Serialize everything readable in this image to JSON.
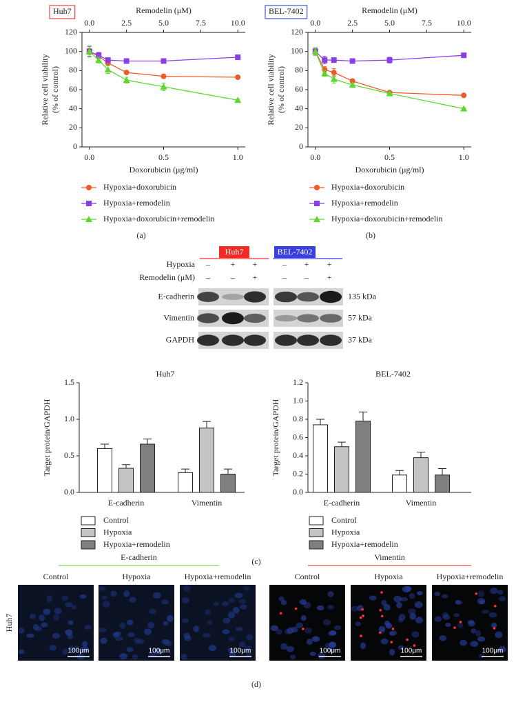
{
  "chart_data": [
    {
      "type": "line",
      "badge": "Huh7",
      "badge_color": "#e8453c",
      "panel_label": "(a)",
      "x2_label": "Remodelin (μM)",
      "xlabel": "Doxorubicin (μg/ml)",
      "ylabel": [
        "Relative cell viability",
        "(% of control)"
      ],
      "x": [
        0,
        0.0625,
        0.125,
        0.25,
        0.5,
        1.0
      ],
      "xlim": [
        -0.05,
        1.05
      ],
      "xticks": [
        {
          "value": 0,
          "label": "0.0"
        },
        0.5,
        {
          "value": 1,
          "label": "1.0"
        }
      ],
      "x2lim": [
        -0.5,
        10.5
      ],
      "x2ticks": [
        {
          "value": 0,
          "label": "0.0"
        },
        2.5,
        {
          "value": 5,
          "label": "5.0"
        },
        7.5,
        {
          "value": 10,
          "label": "10.0"
        }
      ],
      "ylim": [
        0,
        120
      ],
      "yticks": [
        0,
        20,
        40,
        60,
        80,
        100,
        120
      ],
      "series": [
        {
          "name": "Hypoxia+doxorubicin",
          "color": "#f05a28",
          "marker": "circle",
          "values": [
            100,
            95,
            88,
            78,
            74,
            73
          ],
          "errors": [
            3,
            2,
            2,
            1,
            2,
            1
          ]
        },
        {
          "name": "Hypoxia+remodelin",
          "color": "#8a3ee8",
          "marker": "square",
          "values": [
            100,
            96,
            91,
            90,
            90,
            94
          ],
          "errors": [
            5,
            3,
            1,
            1,
            2,
            1
          ]
        },
        {
          "name": "Hypoxia+doxorubicin+remodelin",
          "color": "#5fd62f",
          "marker": "triangle",
          "values": [
            100,
            91,
            81,
            70,
            63,
            49
          ],
          "errors": [
            6,
            3,
            4,
            3,
            4,
            1
          ]
        }
      ]
    },
    {
      "type": "line",
      "badge": "BEL-7402",
      "badge_color": "#3f4fd6",
      "panel_label": "(b)",
      "x2_label": "Remodelin (μM)",
      "xlabel": "Doxorubicin (μg/ml)",
      "ylabel": [
        "Relative cell viability",
        "(% of control)"
      ],
      "x": [
        0,
        0.0625,
        0.125,
        0.25,
        0.5,
        1.0
      ],
      "xlim": [
        -0.05,
        1.05
      ],
      "xticks": [
        {
          "value": 0,
          "label": "0.0"
        },
        0.5,
        {
          "value": 1,
          "label": "1.0"
        }
      ],
      "x2lim": [
        -0.5,
        10.5
      ],
      "x2ticks": [
        {
          "value": 0,
          "label": "0.0"
        },
        2.5,
        {
          "value": 5,
          "label": "5.0"
        },
        7.5,
        {
          "value": 10,
          "label": "10.0"
        }
      ],
      "ylim": [
        0,
        120
      ],
      "yticks": [
        0,
        20,
        40,
        60,
        80,
        100,
        120
      ],
      "series": [
        {
          "name": "Hypoxia+doxorubicin",
          "color": "#f05a28",
          "marker": "circle",
          "values": [
            100,
            81,
            78,
            69,
            57,
            54
          ],
          "errors": [
            3,
            3,
            4,
            2,
            1,
            1
          ]
        },
        {
          "name": "Hypoxia+remodelin",
          "color": "#8a3ee8",
          "marker": "square",
          "values": [
            100,
            91,
            91,
            90,
            91,
            96
          ],
          "errors": [
            4,
            4,
            1,
            1,
            3,
            1
          ]
        },
        {
          "name": "Hypoxia+doxorubicin+remodelin",
          "color": "#5fd62f",
          "marker": "triangle",
          "values": [
            100,
            77,
            71,
            65,
            56,
            40
          ],
          "errors": [
            4,
            3,
            4,
            2,
            1,
            1
          ]
        }
      ]
    },
    {
      "type": "bar",
      "title": "Huh7",
      "ylabel": "Target protein/GAPDH",
      "categories": [
        "E-cadherin",
        "Vimentin"
      ],
      "ylim": [
        0,
        1.5
      ],
      "yticks": [
        {
          "value": 0,
          "label": "0.0"
        },
        0.5,
        {
          "value": 1,
          "label": "1.0"
        },
        1.5
      ],
      "series": [
        {
          "name": "Control",
          "color": "#ffffff",
          "values": [
            0.6,
            0.27
          ],
          "errors": [
            0.06,
            0.05
          ]
        },
        {
          "name": "Hypoxia",
          "color": "#c4c4c4",
          "values": [
            0.33,
            0.88
          ],
          "errors": [
            0.05,
            0.09
          ]
        },
        {
          "name": "Hypoxia+remodelin",
          "color": "#7f7f7f",
          "values": [
            0.66,
            0.25
          ],
          "errors": [
            0.07,
            0.07
          ]
        }
      ]
    },
    {
      "type": "bar",
      "title": "BEL-7402",
      "ylabel": "Target protein/GAPDH",
      "categories": [
        "E-cadherin",
        "Vimentin"
      ],
      "ylim": [
        0,
        1.2
      ],
      "yticks": [
        {
          "value": 0,
          "label": "0.0"
        },
        0.2,
        0.4,
        0.6,
        0.8,
        {
          "value": 1,
          "label": "1.0"
        },
        1.2
      ],
      "series": [
        {
          "name": "Control",
          "color": "#ffffff",
          "values": [
            0.74,
            0.19
          ],
          "errors": [
            0.06,
            0.05
          ]
        },
        {
          "name": "Hypoxia",
          "color": "#c4c4c4",
          "values": [
            0.5,
            0.38
          ],
          "errors": [
            0.05,
            0.06
          ]
        },
        {
          "name": "Hypoxia+remodelin",
          "color": "#7f7f7f",
          "values": [
            0.78,
            0.19
          ],
          "errors": [
            0.1,
            0.07
          ]
        }
      ]
    }
  ],
  "blot": {
    "cell_lines": [
      "Huh7",
      "BEL-7402"
    ],
    "conditions": [
      {
        "label": "Hypoxia",
        "signs": [
          "–",
          "+",
          "+",
          "–",
          "+",
          "+"
        ]
      },
      {
        "label": "Remodelin (μM)",
        "signs": [
          "–",
          "–",
          "+",
          "–",
          "–",
          "+"
        ]
      }
    ],
    "rows": [
      {
        "label": "E-cadherin",
        "size": "135 kDa"
      },
      {
        "label": "Vimentin",
        "size": "57 kDa"
      },
      {
        "label": "GAPDH",
        "size": "37 kDa"
      }
    ],
    "panel_label": "(c)"
  },
  "micrographs": {
    "row_label": "Huh7",
    "groups": [
      {
        "title": "E-cadherin",
        "columns": [
          "Control",
          "Hypoxia",
          "Hypoxia+remodelin"
        ]
      },
      {
        "title": "Vimentin",
        "columns": [
          "Control",
          "Hypoxia",
          "Hypoxia+remodelin"
        ]
      }
    ],
    "scale_bar": "100μm",
    "panel_label": "(d)"
  }
}
